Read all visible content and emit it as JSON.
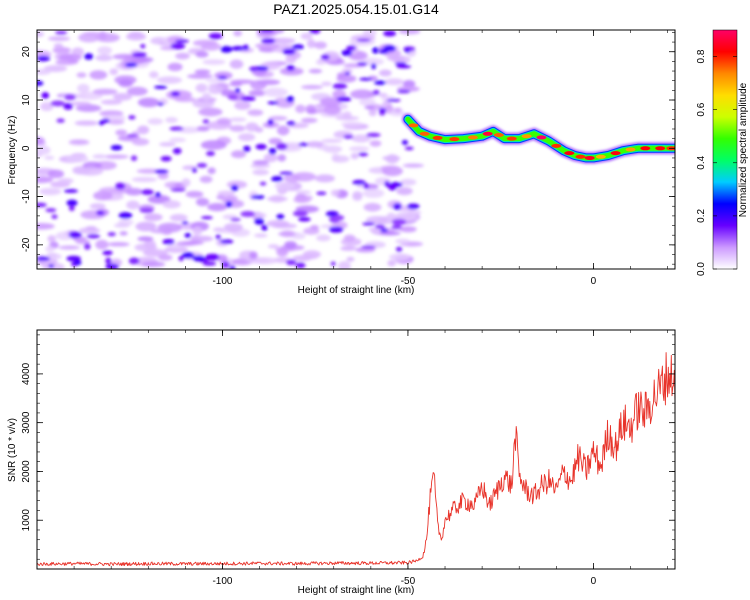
{
  "title": "PAZ1.2025.054.15.01.G14",
  "chart_data": [
    {
      "type": "heatmap",
      "xlabel": "Height of straight line (km)",
      "ylabel": "Frequency (Hz)",
      "xlim": [
        -150,
        22
      ],
      "ylim": [
        -25,
        24.5
      ],
      "x_ticks": [
        -100,
        -50,
        0
      ],
      "x_tick_labels": [
        "-100",
        "-50",
        "0"
      ],
      "y_ticks": [
        -20,
        -10,
        0,
        10,
        20
      ],
      "y_tick_labels": [
        "-20",
        "-10",
        "0",
        "10",
        "20"
      ],
      "colorbar": {
        "label": "Normalized spectral amplitude",
        "range": [
          0.0,
          0.9
        ],
        "ticks": [
          0.0,
          0.2,
          0.4,
          0.6,
          0.8
        ],
        "tick_labels": [
          "0.0",
          "0.2",
          "0.4",
          "0.6",
          "0.8"
        ],
        "colormap": [
          "#ffffff",
          "#cc99ff",
          "#6600ff",
          "#0000ff",
          "#00ccff",
          "#00ff66",
          "#33ff00",
          "#ccff00",
          "#ffdd00",
          "#ff8800",
          "#ff0000",
          "#ff0066"
        ]
      },
      "noise_region": {
        "x_range": [
          -150,
          -48
        ],
        "y_range": [
          -25,
          24.5
        ],
        "peak_amplitude": 0.25
      },
      "signal_ridge": {
        "x": [
          -50,
          -47,
          -44,
          -40,
          -35,
          -30,
          -27,
          -24,
          -20,
          -16,
          -12,
          -8,
          -5,
          -2,
          0,
          4,
          8,
          12,
          16,
          20,
          22
        ],
        "frequency": [
          6,
          3.5,
          2.5,
          1.8,
          2,
          2.5,
          3.5,
          2,
          2,
          3,
          1.5,
          -0.5,
          -1.5,
          -2,
          -2,
          -1.5,
          -0.5,
          0,
          0,
          0,
          0
        ],
        "peak_amplitude": 0.9
      },
      "grid": false
    },
    {
      "type": "line",
      "xlabel": "Height of straight line (km)",
      "ylabel": "SNR (10 * v/v)",
      "xlim": [
        -150,
        22
      ],
      "ylim": [
        0,
        4900
      ],
      "x_ticks": [
        -100,
        -50,
        0
      ],
      "x_tick_labels": [
        "-100",
        "-50",
        "0"
      ],
      "y_ticks": [
        1000,
        2000,
        3000,
        4000
      ],
      "y_tick_labels": [
        "1000",
        "2000",
        "3000",
        "4000"
      ],
      "line_color": "#e8332a",
      "series": [
        {
          "x": [
            -150,
            -140,
            -130,
            -120,
            -110,
            -100,
            -90,
            -80,
            -70,
            -60,
            -50,
            -48,
            -46,
            -45,
            -44,
            -43,
            -42,
            -41,
            -40,
            -38,
            -35,
            -32,
            -30,
            -28,
            -26,
            -24,
            -22,
            -21,
            -20,
            -18,
            -16,
            -14,
            -12,
            -10,
            -8,
            -6,
            -4,
            -2,
            0,
            2,
            4,
            6,
            8,
            10,
            12,
            14,
            16,
            18,
            20,
            22
          ],
          "y": [
            100,
            110,
            100,
            110,
            105,
            110,
            115,
            110,
            120,
            120,
            130,
            160,
            250,
            600,
            1450,
            1900,
            900,
            600,
            1000,
            1200,
            1400,
            1300,
            1700,
            1300,
            1600,
            1900,
            1700,
            2800,
            1900,
            1600,
            1500,
            1700,
            1800,
            1600,
            2000,
            1800,
            2300,
            2000,
            2400,
            2100,
            2800,
            2500,
            3000,
            2900,
            3300,
            3200,
            3500,
            3700,
            4000,
            3900
          ]
        }
      ],
      "grid": false
    }
  ]
}
